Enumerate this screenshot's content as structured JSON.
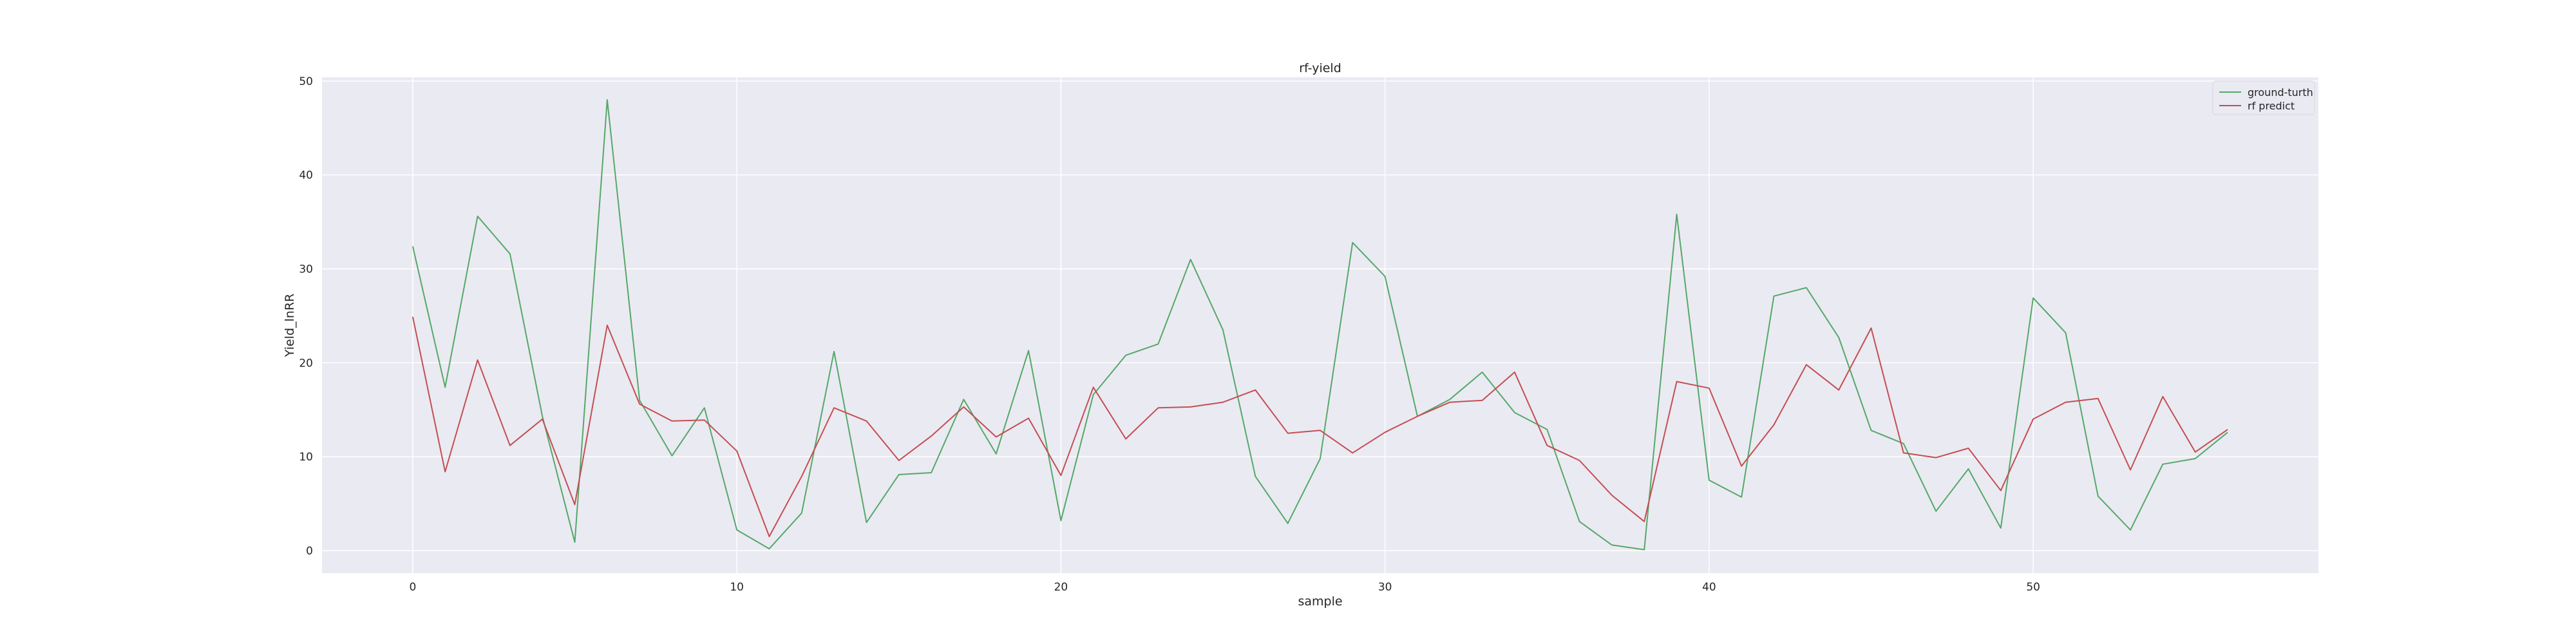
{
  "chart_data": {
    "type": "line",
    "title": "rf-yield",
    "xlabel": "sample",
    "ylabel": "Yield_lnRR",
    "xlim": [
      -2.8,
      58.8
    ],
    "ylim": [
      -2.4,
      50.4
    ],
    "xticks": [
      0,
      10,
      20,
      30,
      40,
      50
    ],
    "yticks": [
      0,
      10,
      20,
      30,
      40,
      50
    ],
    "grid": true,
    "legend_position": "top-right",
    "x": [
      0,
      1,
      2,
      3,
      4,
      5,
      6,
      7,
      8,
      9,
      10,
      11,
      12,
      13,
      14,
      15,
      16,
      17,
      18,
      19,
      20,
      21,
      22,
      23,
      24,
      25,
      26,
      27,
      28,
      29,
      30,
      31,
      32,
      33,
      34,
      35,
      36,
      37,
      38,
      39,
      40,
      41,
      42,
      43,
      44,
      45,
      46,
      47,
      48,
      49,
      50,
      51,
      52,
      53,
      54,
      55,
      56
    ],
    "series": [
      {
        "name": "ground-turth",
        "color": "#55a868",
        "values": [
          32.4,
          17.4,
          35.6,
          31.6,
          14.3,
          0.9,
          48.0,
          16.0,
          10.1,
          15.2,
          2.2,
          0.2,
          4.0,
          21.2,
          3.0,
          8.1,
          8.3,
          16.1,
          10.3,
          21.3,
          3.2,
          16.6,
          20.8,
          22.0,
          31.0,
          23.5,
          7.9,
          2.9,
          9.8,
          32.8,
          29.2,
          14.3,
          16.1,
          19.0,
          14.7,
          12.9,
          3.1,
          0.6,
          0.1,
          35.8,
          7.5,
          5.7,
          27.1,
          28.0,
          22.7,
          12.8,
          11.4,
          4.2,
          8.7,
          2.4,
          26.9,
          23.2,
          5.8,
          2.2,
          9.2,
          9.8,
          12.6
        ]
      },
      {
        "name": "rf predict",
        "color": "#c44e52",
        "values": [
          24.9,
          8.4,
          20.3,
          11.2,
          14.0,
          4.9,
          24.0,
          15.6,
          13.8,
          13.9,
          10.6,
          1.5,
          7.9,
          15.2,
          13.8,
          9.6,
          12.2,
          15.3,
          12.1,
          14.1,
          8.0,
          17.4,
          11.9,
          15.2,
          15.3,
          15.8,
          17.1,
          12.5,
          12.8,
          10.4,
          12.6,
          14.3,
          15.8,
          16.0,
          19.0,
          11.2,
          9.6,
          5.9,
          3.1,
          18.0,
          17.3,
          9.0,
          13.4,
          19.8,
          17.1,
          23.7,
          10.4,
          9.9,
          10.9,
          6.4,
          14.0,
          15.8,
          16.2,
          8.6,
          16.4,
          10.5,
          12.9
        ]
      }
    ]
  }
}
